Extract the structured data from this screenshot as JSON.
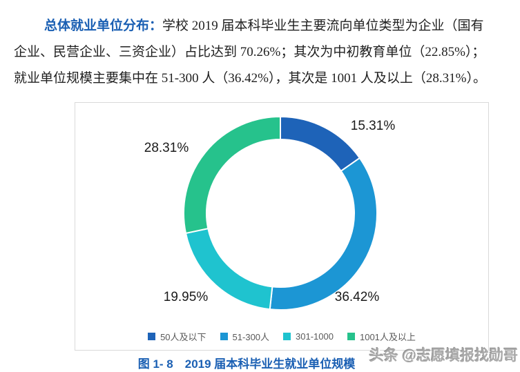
{
  "paragraph": {
    "lead": "总体就业单位分布：",
    "line1_rest": "学校 2019 届本科毕业生主要流向单位类型为企业（国有",
    "line2": "企业、民营企业、三资企业）占比达到 70.26%；其次为中初教育单位（22.85%）；",
    "line3": "就业单位规模主要集中在 51-300 人（36.42%），其次是 1001 人及以上（28.31%）。"
  },
  "chart_data": {
    "type": "pie",
    "subtype": "donut",
    "title": "图 1- 8　2019 届本科毕业生就业单位规模",
    "categories": [
      "50人及以下",
      "51-300人",
      "301-1000",
      "1001人及以上"
    ],
    "values": [
      15.31,
      36.42,
      19.95,
      28.31
    ],
    "labels": [
      "15.31%",
      "36.42%",
      "19.95%",
      "28.31%"
    ],
    "unit": "%",
    "colors": [
      "#1e63b8",
      "#1c96d4",
      "#1fc3cf",
      "#26c28c"
    ],
    "start_angle_deg": 0,
    "direction": "clockwise",
    "donut_hole_ratio": 0.77,
    "gap_color": "#ffffff",
    "legend_position": "bottom",
    "data_label_position": "outside"
  },
  "caption": {
    "text": "图 1- 8　2019 届本科毕业生就业单位规模"
  },
  "watermark": {
    "text": "头条 @志愿填报找勋哥"
  },
  "colors": {
    "heading_blue": "#1a5fb3",
    "body_text": "#1f1f1f",
    "legend_text": "#595959",
    "box_border": "#d9d9d9"
  }
}
